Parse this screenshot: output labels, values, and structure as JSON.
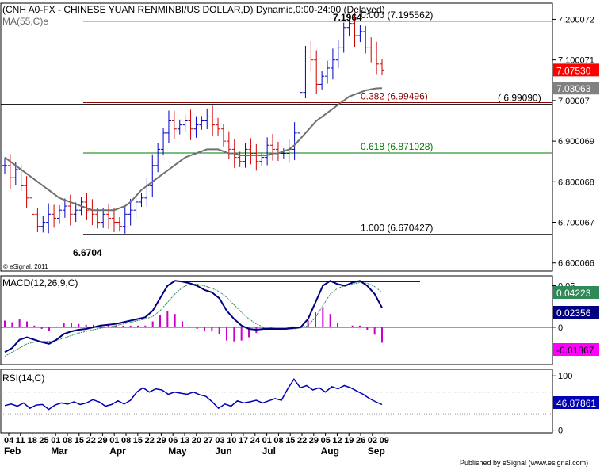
{
  "header": {
    "title": "(CNH A0-FX - CHINESE YUAN RENMINBI/US DOLLAR,D) Dynamic,0:00-24:00 (Delayed)",
    "ma_label": "MA(55,C)e"
  },
  "copyright": "© eSignal, 2011",
  "footer": "Published by eSignal (www.esignal.com)",
  "colors": {
    "bar_up": "#0000c8",
    "bar_down": "#d00000",
    "ma": "#707070",
    "fib_382": "#8b0000",
    "fib_618": "#007700",
    "fib_other": "#000000",
    "macd_line": "#000080",
    "signal_line": "#2e8b57",
    "histogram": "#cc00cc",
    "rsi": "#0000b4"
  },
  "chart_data": [
    {
      "type": "line",
      "panel": "price",
      "ylim": [
        6.58,
        7.24
      ],
      "y_ticks": [
        "7.200072",
        "7.100071",
        "7.00007",
        "6.900069",
        "6.800068",
        "6.700067",
        "6.600066"
      ],
      "y_tick_values": [
        7.200072,
        7.100071,
        7.00007,
        6.900069,
        6.800068,
        6.700067,
        6.600066
      ],
      "x_dates": [
        "04",
        "11",
        "18",
        "25",
        "01",
        "08",
        "15",
        "22",
        "29",
        "01",
        "08",
        "15",
        "22",
        "29",
        "06",
        "13",
        "20",
        "27",
        "03",
        "10",
        "17",
        "24",
        "01",
        "08",
        "15",
        "22",
        "29",
        "05",
        "12",
        "19",
        "26",
        "02",
        "09"
      ],
      "x_months": [
        "Feb",
        "Mar",
        "Apr",
        "May",
        "Jun",
        "Jul",
        "Aug",
        "Sep"
      ],
      "x_month_index": [
        0,
        4,
        9,
        14,
        18,
        22,
        27,
        31
      ],
      "price_path": [
        6.84,
        6.81,
        6.83,
        6.79,
        6.76,
        6.72,
        6.69,
        6.7,
        6.72,
        6.71,
        6.73,
        6.74,
        6.72,
        6.73,
        6.75,
        6.73,
        6.72,
        6.7,
        6.72,
        6.71,
        6.7,
        6.69,
        6.72,
        6.73,
        6.75,
        6.76,
        6.79,
        6.84,
        6.88,
        6.92,
        6.95,
        6.93,
        6.94,
        6.95,
        6.93,
        6.94,
        6.95,
        6.96,
        6.94,
        6.93,
        6.9,
        6.88,
        6.86,
        6.85,
        6.88,
        6.87,
        6.85,
        6.86,
        6.89,
        6.88,
        6.87,
        6.87,
        6.88,
        6.92,
        7.02,
        7.12,
        7.1,
        7.04,
        7.06,
        7.08,
        7.1,
        7.13,
        7.18,
        7.19,
        7.16,
        7.17,
        7.13,
        7.12,
        7.09,
        7.0753
      ],
      "ma_path": [
        6.86,
        6.85,
        6.84,
        6.83,
        6.82,
        6.81,
        6.8,
        6.79,
        6.78,
        6.77,
        6.76,
        6.755,
        6.75,
        6.745,
        6.74,
        6.735,
        6.73,
        6.73,
        6.73,
        6.73,
        6.73,
        6.735,
        6.74,
        6.75,
        6.765,
        6.78,
        6.79,
        6.8,
        6.81,
        6.82,
        6.83,
        6.84,
        6.85,
        6.86,
        6.865,
        6.87,
        6.875,
        6.88,
        6.88,
        6.88,
        6.875,
        6.87,
        6.87,
        6.865,
        6.865,
        6.865,
        6.865,
        6.865,
        6.865,
        6.87,
        6.87,
        6.875,
        6.88,
        6.89,
        6.905,
        6.92,
        6.935,
        6.95,
        6.96,
        6.97,
        6.98,
        6.99,
        7.0,
        7.01,
        7.015,
        7.02,
        7.025,
        7.028,
        7.03,
        7.03063
      ],
      "price_last": "7.07530",
      "ma_last": "7.03063",
      "fib_levels": [
        {
          "label": "0.000 (7.195562)",
          "value": 7.195562,
          "role": "other"
        },
        {
          "label": "0.382 (6.99496)",
          "value": 6.99496,
          "role": "382"
        },
        {
          "label": "0.618 (6.871028)",
          "value": 6.871028,
          "role": "618"
        },
        {
          "label": "1.000 (6.670427)",
          "value": 6.670427,
          "role": "other"
        }
      ],
      "horizontal_level": {
        "label": "( 6.99090)",
        "value": 6.9909
      },
      "annotations": [
        {
          "text": "7.1964",
          "value": 7.1964
        },
        {
          "text": "6.6704",
          "value": 6.6704
        }
      ]
    },
    {
      "type": "line",
      "panel": "macd",
      "label": "MACD(12,26,9,C)",
      "ylim": [
        -0.045,
        0.062
      ],
      "y_ticks": [
        "0.05",
        "0"
      ],
      "y_tick_values": [
        0.05,
        0
      ],
      "macd_last": "0.02356",
      "signal_last": "0.04223",
      "histogram_last": "-0.01867",
      "macd_path": [
        -0.03,
        -0.025,
        -0.015,
        -0.012,
        -0.015,
        -0.018,
        -0.02,
        -0.015,
        -0.008,
        -0.005,
        -0.003,
        -0.002,
        0.0,
        0.002,
        0.003,
        0.004,
        0.006,
        0.008,
        0.01,
        0.012,
        0.02,
        0.035,
        0.05,
        0.056,
        0.055,
        0.053,
        0.05,
        0.045,
        0.042,
        0.035,
        0.02,
        0.01,
        0.002,
        -0.002,
        -0.003,
        -0.002,
        -0.002,
        -0.002,
        -0.002,
        -0.001,
        0.0,
        0.01,
        0.03,
        0.05,
        0.056,
        0.052,
        0.05,
        0.054,
        0.056,
        0.05,
        0.04,
        0.02356
      ],
      "signal_path": [
        -0.035,
        -0.03,
        -0.025,
        -0.02,
        -0.018,
        -0.017,
        -0.017,
        -0.016,
        -0.013,
        -0.01,
        -0.007,
        -0.005,
        -0.003,
        -0.001,
        0.0,
        0.002,
        0.004,
        0.006,
        0.008,
        0.01,
        0.013,
        0.02,
        0.03,
        0.04,
        0.048,
        0.052,
        0.052,
        0.05,
        0.047,
        0.043,
        0.036,
        0.027,
        0.018,
        0.01,
        0.004,
        0.0,
        -0.001,
        -0.002,
        -0.002,
        -0.002,
        -0.001,
        0.002,
        0.012,
        0.026,
        0.04,
        0.047,
        0.05,
        0.052,
        0.054,
        0.053,
        0.049,
        0.04223
      ],
      "histogram": [
        0.008,
        0.006,
        0.01,
        0.007,
        0.002,
        -0.002,
        -0.004,
        0.001,
        0.005,
        0.005,
        0.004,
        0.003,
        0.003,
        0.003,
        0.003,
        0.002,
        0.002,
        0.002,
        0.002,
        0.002,
        0.007,
        0.015,
        0.02,
        0.016,
        0.007,
        0.001,
        -0.002,
        -0.005,
        -0.005,
        -0.008,
        -0.016,
        -0.017,
        -0.016,
        -0.012,
        -0.007,
        -0.002,
        -0.001,
        0.0,
        0.0,
        0.001,
        0.001,
        0.008,
        0.018,
        0.024,
        0.016,
        0.005,
        0.0,
        0.002,
        0.002,
        -0.003,
        -0.009,
        -0.01867
      ]
    },
    {
      "type": "line",
      "panel": "rsi",
      "label": "RSI(14,C)",
      "ylim": [
        -5,
        112
      ],
      "y_ticks": [
        "100",
        "0"
      ],
      "y_tick_values": [
        100,
        0
      ],
      "rsi_last": "46.87861",
      "rsi_path": [
        45,
        48,
        44,
        50,
        40,
        46,
        47,
        38,
        46,
        50,
        48,
        52,
        47,
        50,
        56,
        52,
        44,
        47,
        54,
        48,
        55,
        70,
        78,
        70,
        76,
        74,
        66,
        70,
        68,
        66,
        70,
        65,
        62,
        52,
        40,
        48,
        44,
        54,
        50,
        52,
        55,
        50,
        54,
        58,
        55,
        76,
        94,
        78,
        82,
        74,
        78,
        70,
        80,
        76,
        82,
        78,
        72,
        66,
        58,
        52,
        46.87861
      ]
    }
  ]
}
